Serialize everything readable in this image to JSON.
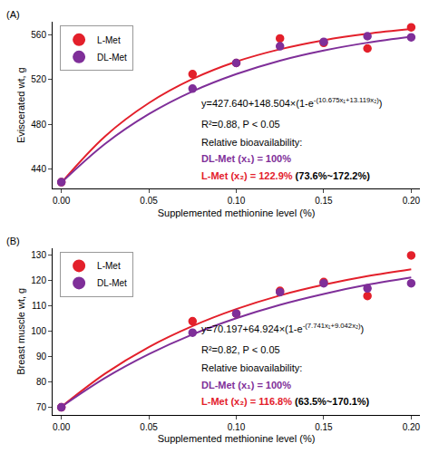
{
  "chart_data": [
    {
      "type": "scatter",
      "panel_label": "(A)",
      "x_label": "Supplemented methionine level (%)",
      "y_label": "Eviscerated wt, g",
      "xlim": [
        -0.005,
        0.205
      ],
      "xticks": [
        {
          "value": 0,
          "label": "0.00"
        },
        0.05,
        {
          "value": 0.1,
          "label": "0.10"
        },
        0.15,
        {
          "value": 0.2,
          "label": "0.20"
        }
      ],
      "ylim": [
        422,
        572
      ],
      "yticks": [
        440,
        480,
        520,
        560
      ],
      "grid": false,
      "legend": "top left",
      "x": [
        0,
        0.075,
        0.1,
        0.125,
        0.15,
        0.175,
        0.2
      ],
      "series": [
        {
          "name": "L-Met",
          "color": "#e3202b",
          "marker": "triangle-open",
          "line_style": "solid",
          "values": [
            428,
            525,
            535,
            557,
            553,
            548,
            567
          ],
          "curve": {
            "x": [
              0,
              0.025,
              0.05,
              0.075,
              0.1,
              0.125,
              0.15,
              0.175,
              0.2
            ],
            "values": [
              427.6,
              469.2,
              499.0,
              520.6,
              536.2,
              547.3,
              555.4,
              561.2,
              565.4
            ]
          }
        },
        {
          "name": "DL-Met",
          "color": "#7f2f99",
          "marker": "circle",
          "line_style": "solid",
          "values": [
            428,
            512,
            535,
            550,
            554,
            559,
            558
          ],
          "curve": {
            "x": [
              0,
              0.025,
              0.05,
              0.075,
              0.1,
              0.125,
              0.15,
              0.175,
              0.2
            ],
            "values": [
              427.6,
              462.4,
              489.1,
              509.5,
              525.0,
              537.1,
              546.2,
              553.2,
              558.6
            ]
          }
        }
      ],
      "equation": {
        "base": "y=427.640+148.504×(1-e",
        "exponent": "-(10.675x₁+13.119x₂)",
        "end": ")"
      },
      "fit_stats": "R²=0.88, P < 0.05",
      "bioavailability": {
        "heading": "Relative bioavailability:",
        "reference": "DL-Met (x₁) = 100%",
        "test": "L-Met (x₂) = 122.9%",
        "interval": "(73.6%~172.2%)"
      }
    },
    {
      "type": "scatter",
      "panel_label": "(B)",
      "x_label": "Supplemented methionine level (%)",
      "y_label": "Breast muscle wt, g",
      "xlim": [
        -0.005,
        0.205
      ],
      "xticks": [
        {
          "value": 0,
          "label": "0.00"
        },
        0.05,
        {
          "value": 0.1,
          "label": "0.10"
        },
        0.15,
        {
          "value": 0.2,
          "label": "0.20"
        }
      ],
      "ylim": [
        67,
        133
      ],
      "yticks": [
        70,
        80,
        90,
        100,
        110,
        120,
        130
      ],
      "grid": false,
      "legend": "top left",
      "x": [
        0,
        0.075,
        0.1,
        0.125,
        0.15,
        0.175,
        0.2
      ],
      "series": [
        {
          "name": "L-Met",
          "color": "#e3202b",
          "marker": "triangle-open",
          "line_style": "solid",
          "values": [
            70,
            104,
            107,
            116,
            119.5,
            114,
            130
          ],
          "curve": {
            "x": [
              0,
              0.025,
              0.05,
              0.075,
              0.1,
              0.125,
              0.15,
              0.175,
              0.2
            ],
            "values": [
              70.2,
              83.3,
              93.8,
              102.1,
              108.8,
              114.2,
              118.4,
              121.8,
              124.5
            ]
          }
        },
        {
          "name": "DL-Met",
          "color": "#7f2f99",
          "marker": "circle",
          "line_style": "solid",
          "values": [
            70,
            99.5,
            107,
            115.5,
            119,
            117,
            119
          ],
          "curve": {
            "x": [
              0,
              0.025,
              0.05,
              0.075,
              0.1,
              0.125,
              0.15,
              0.175,
              0.2
            ],
            "values": [
              70.2,
              81.6,
              91.0,
              98.8,
              105.2,
              110.5,
              114.8,
              118.4,
              121.3
            ]
          }
        }
      ],
      "equation": {
        "base": "y=70.197+64.924×(1-e",
        "exponent": "-(7.741x₁+9.042x₂)",
        "end": ")"
      },
      "fit_stats": "R²=0.82, P < 0.05",
      "bioavailability": {
        "heading": "Relative bioavailability:",
        "reference": "DL-Met (x₁) = 100%",
        "test": "L-Met (x₂) = 116.8%",
        "interval": "(63.5%~170.1%)"
      }
    }
  ]
}
